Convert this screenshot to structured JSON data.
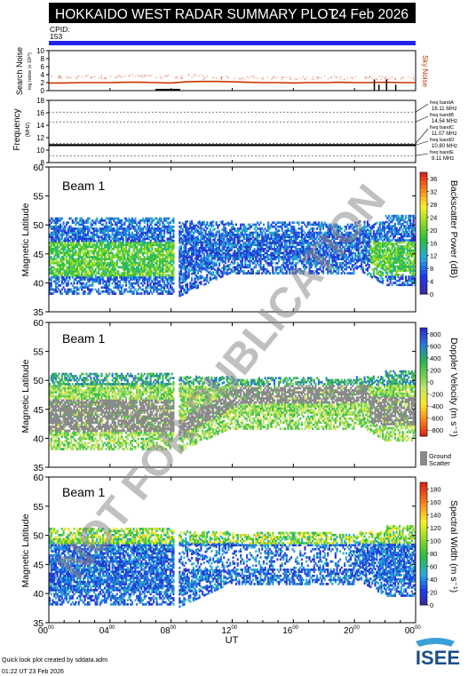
{
  "title": {
    "text": "HOKKAIDO WEST RADAR SUMMARY PLOT",
    "date": "24 Feb 2026",
    "cpid_label": "CPID:",
    "cpid_value": "153"
  },
  "colors": {
    "title_bar": "#000000",
    "cpid_bar": "#2222ee",
    "noise_line": "#cc3300",
    "noise_points": "#dd6644",
    "ground_scatter": "#8a8a8a",
    "watermark": "#8c8c8c"
  },
  "footer": {
    "credit": "Quick look plot created by sddata.adm",
    "timestamp": "01:22 UT 23 Feb 2026",
    "logo": "ISEE"
  },
  "watermark": "NOT FOR PUBLICATION",
  "chart_data": [
    {
      "type": "line",
      "ylabel": "Search Noise",
      "ylabel_small": "log noise (x 10¹⁰)",
      "side_label": "Sky Noise",
      "ylim": [
        0,
        10
      ],
      "y_ticks": [
        "0",
        "2",
        "4",
        "6",
        "8",
        "10"
      ],
      "x": [
        0,
        1,
        2,
        3,
        4,
        5,
        6,
        7,
        8,
        9,
        10,
        11,
        12,
        13,
        14,
        15,
        16,
        17,
        18,
        19,
        20,
        21,
        22,
        23,
        24
      ],
      "series": [
        {
          "values": [
            1.9,
            1.9,
            2.0,
            2.0,
            2.0,
            2.1,
            2.1,
            2.0,
            1.9,
            2.2,
            2.3,
            2.3,
            2.2,
            2.1,
            2.0,
            2.0,
            1.9,
            2.0,
            2.0,
            2.1,
            2.0,
            2.0,
            2.1,
            2.0,
            2.0
          ]
        },
        {
          "values": [
            3.5,
            3.4,
            3.6,
            3.5,
            3.6,
            3.7,
            3.6,
            3.5,
            3.4,
            3.9,
            3.3,
            3.3,
            3.2,
            3.3,
            3.2,
            3.1,
            3.2,
            3.3,
            3.3,
            3.2,
            3.4,
            3.3,
            3.2,
            3.3,
            3.3
          ]
        }
      ],
      "spikes_hours": [
        21.3,
        21.6,
        22.1,
        22.7
      ]
    },
    {
      "type": "line",
      "ylabel": "Frequency",
      "ylabel_unit": "(MHz)",
      "ylim": [
        8,
        18
      ],
      "y_ticks": [
        "8",
        "10",
        "12",
        "14",
        "16",
        "18"
      ],
      "freq_bands": [
        {
          "label": "freq bandA",
          "value": 16.11,
          "text": "16.11 MHz"
        },
        {
          "label": "freq bandB",
          "value": 14.54,
          "text": "14.54 MHz"
        },
        {
          "label": "freq bandC",
          "value": 11.07,
          "text": "11.07 MHz"
        },
        {
          "label": "freq bandD",
          "value": 10.8,
          "text": "10.80 MHz"
        },
        {
          "label": "freq bandE",
          "value": 9.11,
          "text": "9.11 MHz"
        }
      ],
      "series": [
        {
          "value": 10.8
        }
      ]
    },
    {
      "type": "heatmap",
      "beam_label": "Beam  1",
      "ylabel": "Magnetic Latitude",
      "ylim": [
        35,
        60
      ],
      "y_ticks": [
        "35",
        "40",
        "45",
        "50",
        "55",
        "60"
      ],
      "colorbar_label": "Backscatter Power (dB)",
      "colorbar_ticks": [
        "0",
        "4",
        "8",
        "12",
        "16",
        "20",
        "24",
        "28",
        "32",
        "36"
      ],
      "colorbar_range": [
        0,
        38
      ],
      "data_gap_hours": [
        8.1,
        8.4
      ]
    },
    {
      "type": "heatmap",
      "beam_label": "Beam  1",
      "ylabel": "Magnetic Latitude",
      "ylim": [
        35,
        60
      ],
      "y_ticks": [
        "35",
        "40",
        "45",
        "50",
        "55",
        "60"
      ],
      "colorbar_label": "Doppler Velocity (m s⁻¹)",
      "colorbar_ticks": [
        "-800",
        "-600",
        "-400",
        "-200",
        "0",
        "200",
        "400",
        "600",
        "800"
      ],
      "colorbar_range": [
        -900,
        900
      ],
      "ground_scatter_label": [
        "Ground",
        "Scatter"
      ],
      "data_gap_hours": [
        8.1,
        8.4
      ]
    },
    {
      "type": "heatmap",
      "beam_label": "Beam  1",
      "ylabel": "Magnetic Latitude",
      "ylim": [
        35,
        60
      ],
      "y_ticks": [
        "35",
        "40",
        "45",
        "50",
        "55",
        "60"
      ],
      "colorbar_label": "Spectral Width (m s⁻¹)",
      "colorbar_ticks": [
        "0",
        "20",
        "40",
        "60",
        "80",
        "100",
        "120",
        "140",
        "160",
        "180"
      ],
      "colorbar_range": [
        0,
        190
      ],
      "data_gap_hours": [
        8.1,
        8.4
      ]
    }
  ],
  "time_axis": {
    "xlabel": "UT",
    "ticks": [
      {
        "h": "00",
        "m": "00"
      },
      {
        "h": "04",
        "m": "00"
      },
      {
        "h": "08",
        "m": "00"
      },
      {
        "h": "12",
        "m": "00"
      },
      {
        "h": "16",
        "m": "00"
      },
      {
        "h": "20",
        "m": "00"
      },
      {
        "h": "00",
        "m": "00"
      }
    ]
  }
}
